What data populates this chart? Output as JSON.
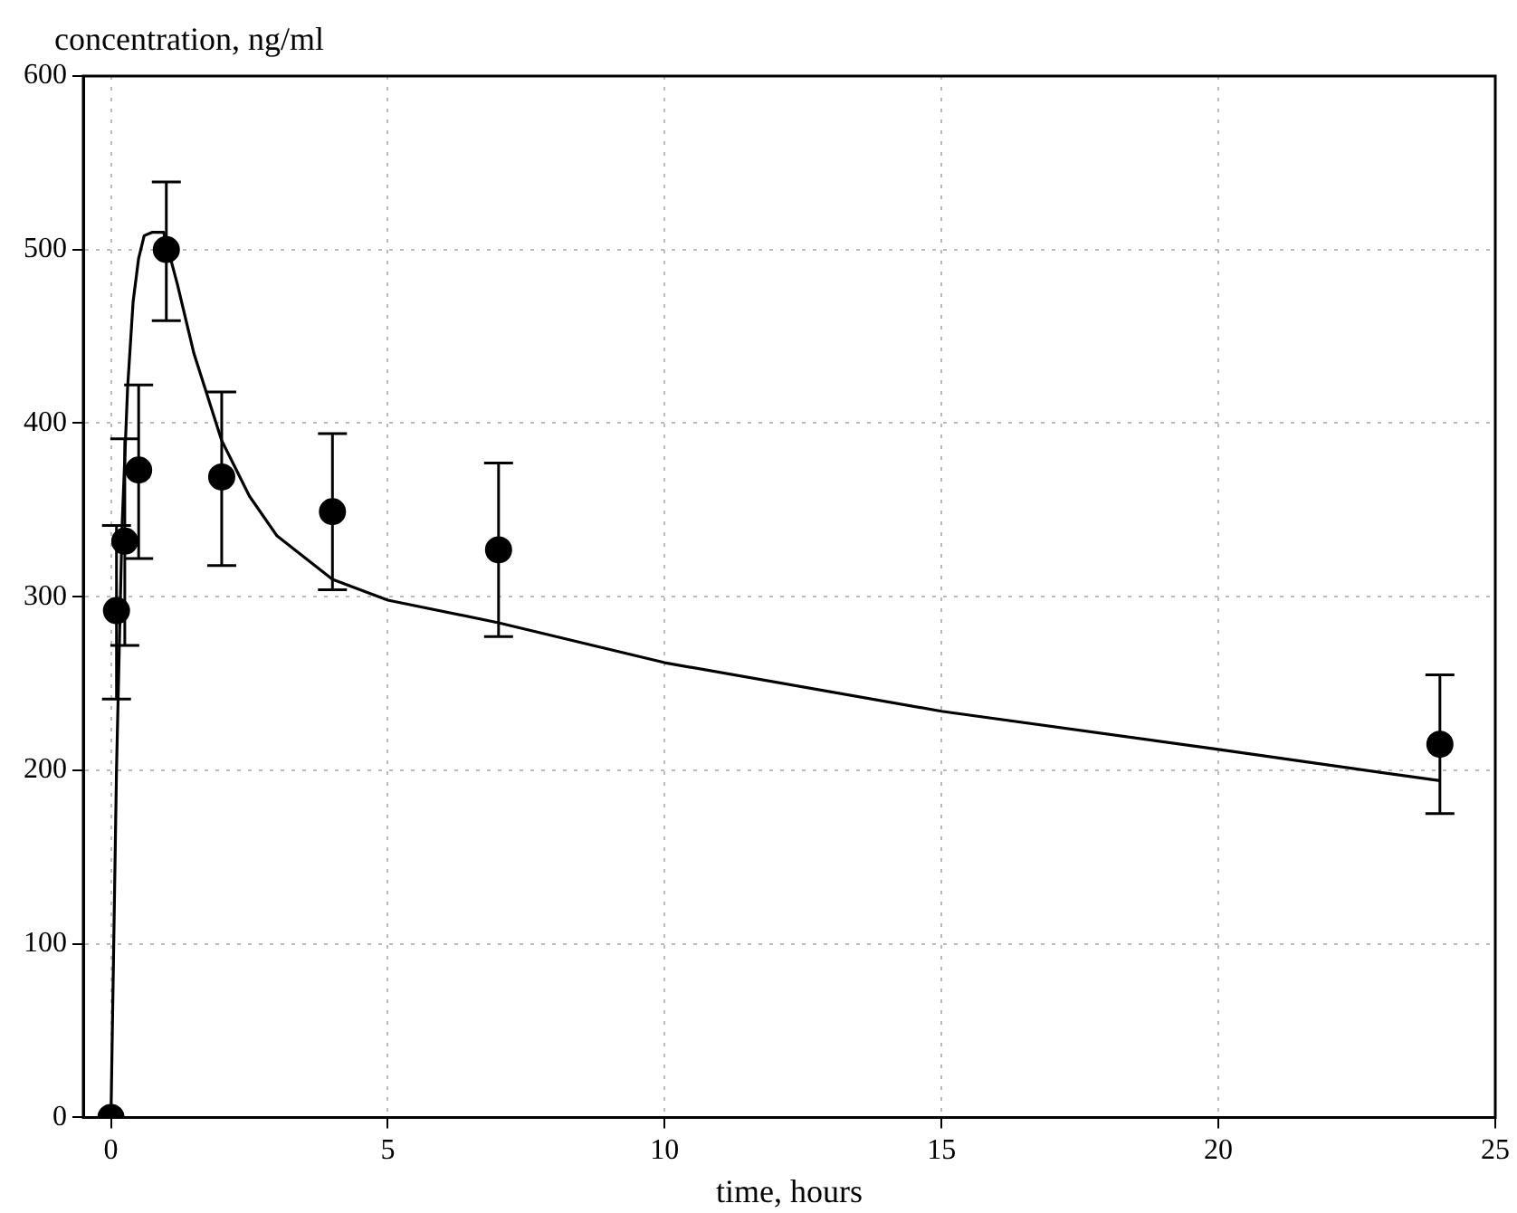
{
  "chart_data": {
    "type": "scatter",
    "ylabel": "concentration, ng/ml",
    "xlabel": "time, hours",
    "xlim": [
      -0.5,
      25
    ],
    "xticks": [
      0,
      5,
      10,
      15,
      20,
      25
    ],
    "ylim": [
      0,
      600
    ],
    "yticks": [
      0,
      100,
      200,
      300,
      400,
      500,
      600
    ],
    "grid": true,
    "legend": false,
    "marker": "circle",
    "series": [
      {
        "color": "#000000",
        "x": [
          0,
          0.1,
          0.25,
          0.5,
          1,
          2,
          4,
          7,
          24
        ],
        "values": [
          0,
          292,
          332,
          373,
          500,
          369,
          349,
          327,
          215
        ],
        "errors": [
          null,
          [
            241,
            341
          ],
          [
            272,
            391
          ],
          [
            322,
            422
          ],
          [
            459,
            539
          ],
          [
            318,
            418
          ],
          [
            304,
            394
          ],
          [
            277,
            377
          ],
          [
            175,
            255
          ]
        ]
      },
      {
        "type": "line",
        "color": "#000000",
        "marker": "none",
        "x": [
          0,
          0.1,
          0.2,
          0.3,
          0.4,
          0.5,
          0.6,
          0.75,
          0.95,
          1.2,
          1.5,
          2,
          2.5,
          3,
          4,
          5,
          7,
          10,
          15,
          20,
          24
        ],
        "values": [
          0,
          200,
          340,
          420,
          470,
          495,
          508,
          510,
          510,
          480,
          440,
          390,
          358,
          335,
          310,
          298,
          285,
          262,
          234,
          212,
          194
        ]
      }
    ]
  }
}
